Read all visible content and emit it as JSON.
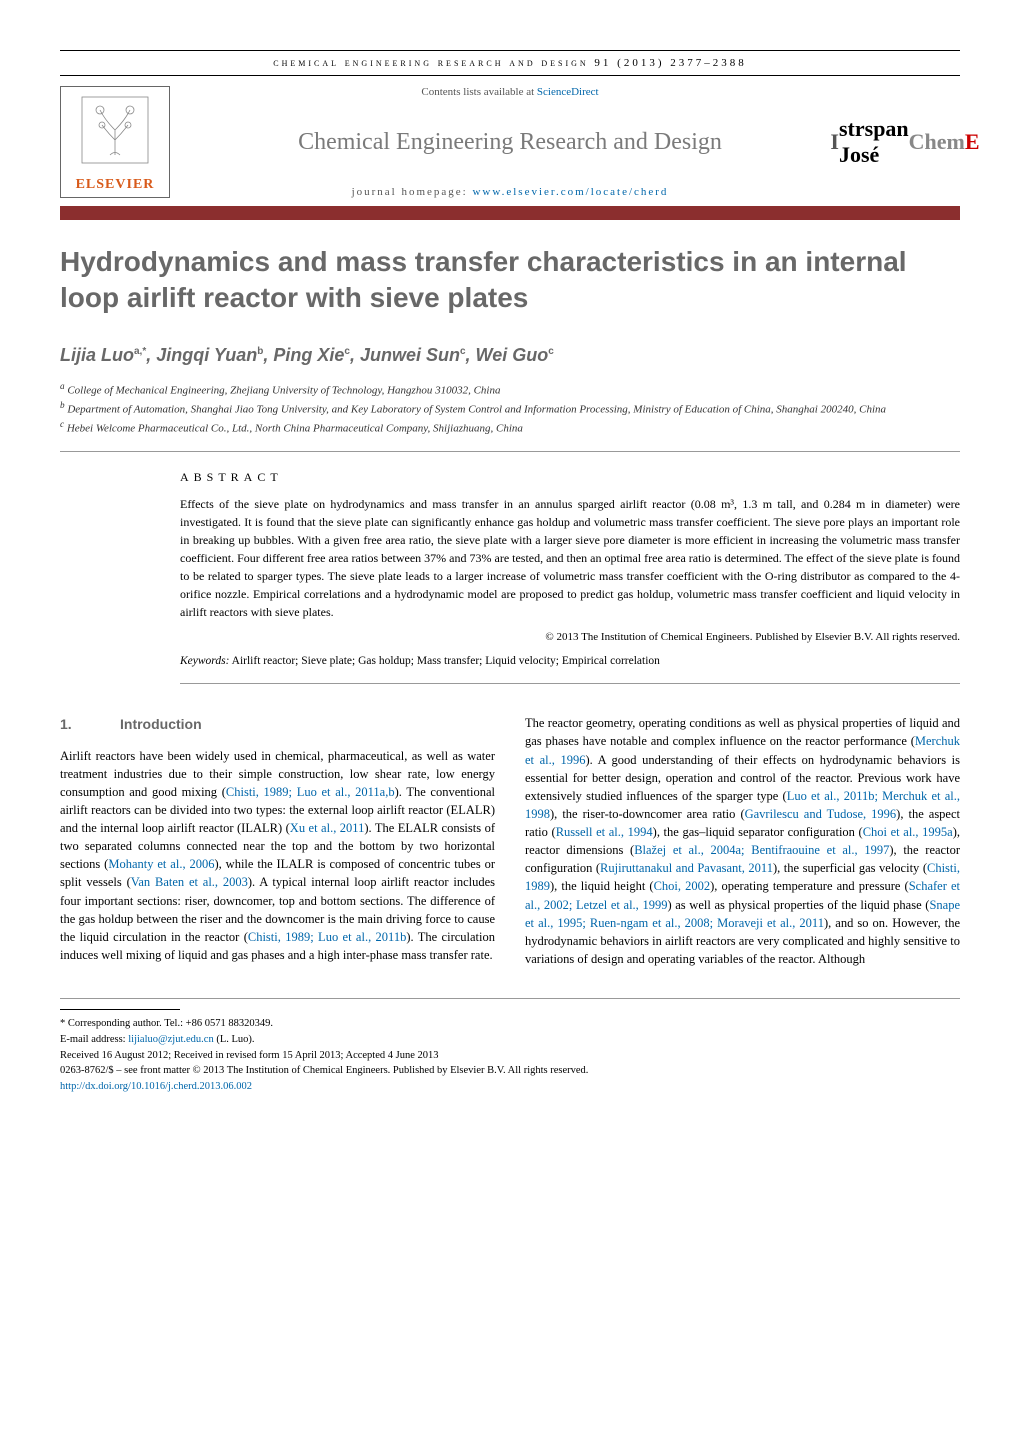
{
  "header": {
    "running_head": "chemical engineering research and design 91 (2013) 2377–2388",
    "contents_prefix": "Contents lists available at ",
    "contents_link": "ScienceDirect",
    "journal_name": "Chemical Engineering Research and Design",
    "homepage_prefix": "journal homepage: ",
    "homepage_link": "www.elsevier.com/locate/cherd",
    "elsevier_label": "ELSEVIER",
    "icheme_i": "I",
    "icheme_chem": "Chem",
    "icheme_e": "E"
  },
  "title": "Hydrodynamics and mass transfer characteristics in an internal loop airlift reactor with sieve plates",
  "authors_html": "Lijia Luo<sup>a,*</sup>, Jingqi Yuan<sup>b</sup>, Ping Xie<sup>c</sup>, Junwei Sun<sup>c</sup>, Wei Guo<sup>c</sup>",
  "authors": [
    {
      "name": "Lijia Luo",
      "marks": "a,*"
    },
    {
      "name": "Jingqi Yuan",
      "marks": "b"
    },
    {
      "name": "Ping Xie",
      "marks": "c"
    },
    {
      "name": "Junwei Sun",
      "marks": "c"
    },
    {
      "name": "Wei Guo",
      "marks": "c"
    }
  ],
  "affiliations": [
    {
      "mark": "a",
      "text": "College of Mechanical Engineering, Zhejiang University of Technology, Hangzhou 310032, China"
    },
    {
      "mark": "b",
      "text": "Department of Automation, Shanghai Jiao Tong University, and Key Laboratory of System Control and Information Processing, Ministry of Education of China, Shanghai 200240, China"
    },
    {
      "mark": "c",
      "text": "Hebei Welcome Pharmaceutical Co., Ltd., North China Pharmaceutical Company, Shijiazhuang, China"
    }
  ],
  "abstract": {
    "label": "ABSTRACT",
    "text": "Effects of the sieve plate on hydrodynamics and mass transfer in an annulus sparged airlift reactor (0.08 m³, 1.3 m tall, and 0.284 m in diameter) were investigated. It is found that the sieve plate can significantly enhance gas holdup and volumetric mass transfer coefficient. The sieve pore plays an important role in breaking up bubbles. With a given free area ratio, the sieve plate with a larger sieve pore diameter is more efficient in increasing the volumetric mass transfer coefficient. Four different free area ratios between 37% and 73% are tested, and then an optimal free area ratio is determined. The effect of the sieve plate is found to be related to sparger types. The sieve plate leads to a larger increase of volumetric mass transfer coefficient with the O-ring distributor as compared to the 4-orifice nozzle. Empirical correlations and a hydrodynamic model are proposed to predict gas holdup, volumetric mass transfer coefficient and liquid velocity in airlift reactors with sieve plates.",
    "copyright": "© 2013 The Institution of Chemical Engineers. Published by Elsevier B.V. All rights reserved.",
    "keywords_label": "Keywords:",
    "keywords_text": " Airlift reactor; Sieve plate; Gas holdup; Mass transfer; Liquid velocity; Empirical correlation"
  },
  "section1": {
    "num": "1.",
    "title": "Introduction"
  },
  "body": {
    "col1_p1_a": "Airlift reactors have been widely used in chemical, pharmaceutical, as well as water treatment industries due to their simple construction, low shear rate, low energy consumption and good mixing (",
    "ref1": "Chisti, 1989; Luo et al., 2011a,b",
    "col1_p1_b": "). The conventional airlift reactors can be divided into two types: the external loop airlift reactor (ELALR) and the internal loop airlift reactor (ILALR) (",
    "ref2": "Xu et al., 2011",
    "col1_p1_c": "). The ELALR consists of two separated columns connected near the top and the bottom by two horizontal sections (",
    "ref3": "Mohanty et al., 2006",
    "col1_p1_d": "), while the ILALR is composed of concentric tubes or split vessels (",
    "ref4": "Van Baten et al., 2003",
    "col1_p1_e": "). A typical internal loop airlift reactor includes four important sections: riser, downcomer, top and bottom sections. The difference of the gas holdup between the riser and the downcomer is the main driving force to cause the liquid circulation in the reactor (",
    "ref5": "Chisti, 1989; Luo et al., 2011b",
    "col1_p1_f": "). The circulation induces well mixing of liquid and gas phases and a high inter-phase mass transfer rate.",
    "col2_p1_a": "The reactor geometry, operating conditions as well as physical properties of liquid and gas phases have notable and complex influence on the reactor performance (",
    "ref6": "Merchuk et al., 1996",
    "col2_p1_b": "). A good understanding of their effects on hydrodynamic behaviors is essential for better design, operation and control of the reactor. Previous work have extensively studied influences of the sparger type (",
    "ref7": "Luo et al., 2011b; Merchuk et al., 1998",
    "col2_p1_c": "), the riser-to-downcomer area ratio (",
    "ref8": "Gavrilescu and Tudose, 1996",
    "col2_p1_d": "), the aspect ratio (",
    "ref9": "Russell et al., 1994",
    "col2_p1_e": "), the gas–liquid separator configuration (",
    "ref10": "Choi et al., 1995a",
    "col2_p1_f": "), reactor dimensions (",
    "ref11": "Blažej et al., 2004a; Bentifraouine et al., 1997",
    "col2_p1_g": "), the reactor configuration (",
    "ref12": "Rujiruttanakul and Pavasant, 2011",
    "col2_p1_h": "), the superficial gas velocity (",
    "ref13": "Chisti, 1989",
    "col2_p1_i": "), the liquid height (",
    "ref14": "Choi, 2002",
    "col2_p1_j": "), operating temperature and pressure (",
    "ref15": "Schafer et al., 2002; Letzel et al., 1999",
    "col2_p1_k": ") as well as physical properties of the liquid phase (",
    "ref16": "Snape et al., 1995; Ruen-ngam et al., 2008; Moraveji et al., 2011",
    "col2_p1_l": "), and so on. However, the hydrodynamic behaviors in airlift reactors are very complicated and highly sensitive to variations of design and operating variables of the reactor. Although"
  },
  "footer": {
    "corresponding_label": "* Corresponding author.",
    "corresponding_tel": " Tel.: +86 0571 88320349.",
    "email_label": "E-mail address: ",
    "email": "lijialuo@zjut.edu.cn",
    "email_tail": " (L. Luo).",
    "received": "Received 16 August 2012; Received in revised form 15 April 2013; Accepted 4 June 2013",
    "issn_line": "0263-8762/$ – see front matter © 2013 The Institution of Chemical Engineers. Published by Elsevier B.V. All rights reserved.",
    "doi": "http://dx.doi.org/10.1016/j.cherd.2013.06.002"
  },
  "colors": {
    "red_bar": "#8b2e2e",
    "title_grey": "#686868",
    "elsevier_orange": "#d85a1a",
    "link_blue": "#0066aa",
    "icheme_red": "#cc0000"
  }
}
